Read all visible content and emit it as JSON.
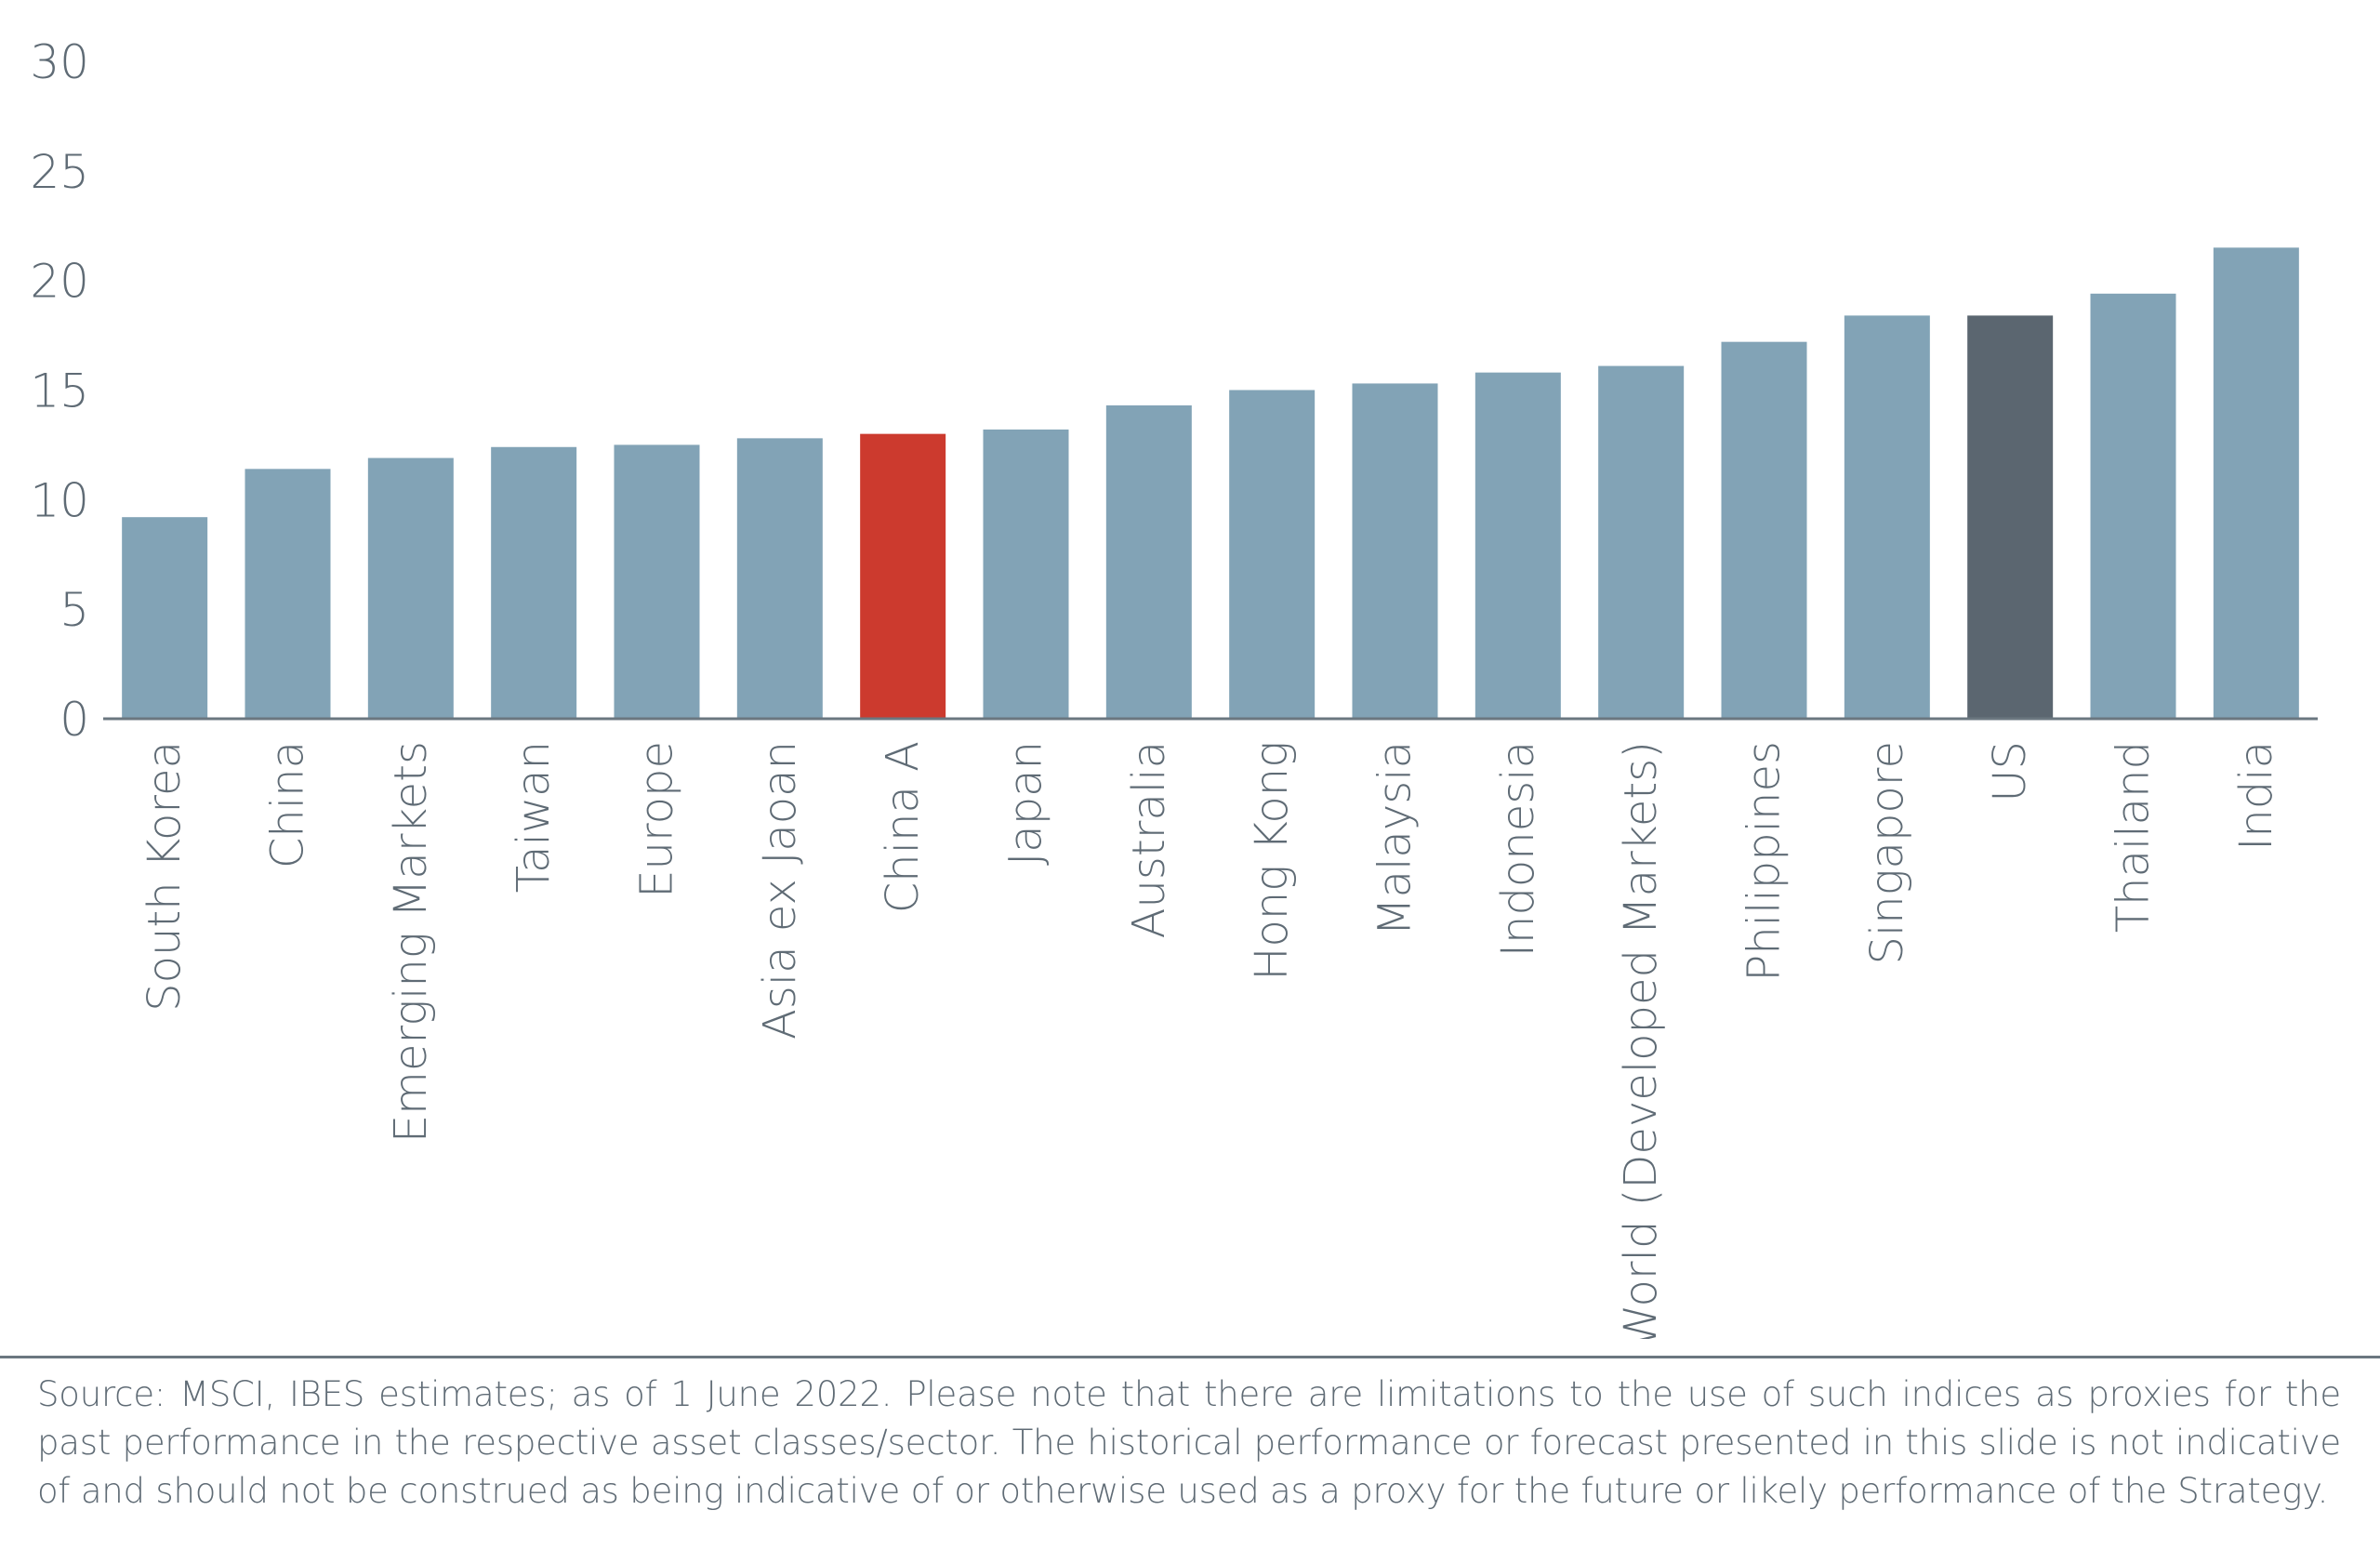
{
  "chart_data": {
    "type": "bar",
    "categories": [
      "South Korea",
      "China",
      "Emerging Markets",
      "Taiwan",
      "Europe",
      "Asia ex Jaoan",
      "China A",
      "Japan",
      "Australia",
      "Hong Kong",
      "Malaysia",
      "Indonesia",
      "World (Developed Markets)",
      "Philippines",
      "Singapore",
      "US",
      "Thailand",
      "India"
    ],
    "values": [
      9.2,
      11.4,
      11.9,
      12.4,
      12.5,
      12.8,
      13.0,
      13.2,
      14.3,
      15.0,
      15.3,
      15.8,
      16.1,
      17.2,
      18.4,
      18.4,
      19.4,
      21.5
    ],
    "colors": [
      "#82a3b6",
      "#82a3b6",
      "#82a3b6",
      "#82a3b6",
      "#82a3b6",
      "#82a3b6",
      "#cc3a2e",
      "#82a3b6",
      "#82a3b6",
      "#82a3b6",
      "#82a3b6",
      "#82a3b6",
      "#82a3b6",
      "#82a3b6",
      "#82a3b6",
      "#5b6670",
      "#82a3b6",
      "#82a3b6"
    ],
    "y_ticks": [
      0,
      5,
      10,
      15,
      20,
      25,
      30
    ],
    "ylim": [
      0,
      30
    ],
    "grid": false,
    "legend": false,
    "title": "",
    "xlabel": "",
    "ylabel": ""
  },
  "footnote": "Source: MSCI, IBES estimates; as of 1 June 2022. Please note that there are limitations to the use of such indices as proxies for the past performance in the respective asset classes/sector. The historical performance or forecast presented in this slide is not indicative of and should not be construed as being indicative of or otherwise used as a proxy for the future or likely performance of the Strategy.",
  "colors": {
    "axis": "#6b7780",
    "text": "#5f6b75",
    "bar_default": "#82a3b6",
    "highlight_china_a": "#cc3a2e",
    "highlight_us": "#5b6670"
  }
}
